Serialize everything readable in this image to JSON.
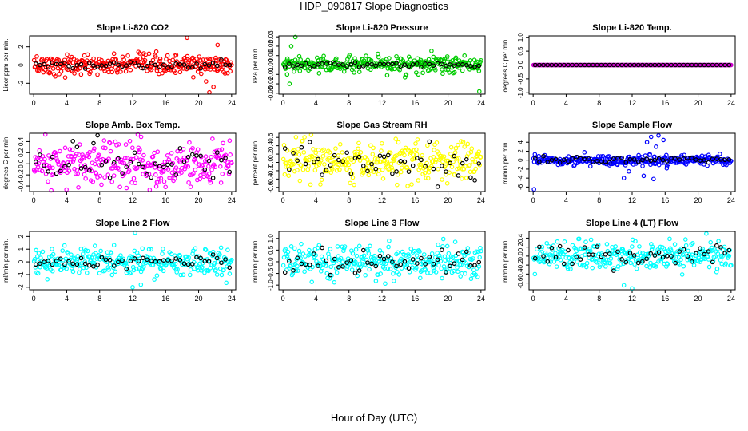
{
  "page": {
    "title": "HDP_090817  Slope Diagnostics",
    "xlabel": "Hour of Day (UTC)"
  },
  "colors": {
    "axis": "#000000",
    "overlay_points": "#000000"
  },
  "chart_data": [
    {
      "type": "scatter",
      "title": "Slope Li-820 CO2",
      "ylabel": "Licor ppm per min.",
      "color": "#ff0000",
      "xlim": [
        -0.5,
        24.5
      ],
      "xticks": [
        0,
        4,
        8,
        12,
        16,
        20,
        24
      ],
      "ylim": [
        -3.2,
        3.2
      ],
      "yticks": [
        -2,
        0,
        2
      ],
      "series_noise": {
        "sd": 0.55,
        "outliers": [
          [
            18.6,
            3.0
          ],
          [
            20.9,
            -1.8
          ],
          [
            21.3,
            -3.0
          ],
          [
            21.8,
            -2.4
          ],
          [
            22.3,
            2.2
          ]
        ]
      },
      "black_sd": 0.25
    },
    {
      "type": "scatter",
      "title": "Slope Li-820 Pressure",
      "ylabel": "kPa per min.",
      "color": "#00cc00",
      "xlim": [
        -0.5,
        24.5
      ],
      "xticks": [
        0,
        4,
        8,
        12,
        16,
        20,
        24
      ],
      "ylim": [
        -0.031,
        0.031
      ],
      "yticks": [
        -0.03,
        -0.02,
        -0.01,
        0.0,
        0.01,
        0.02,
        0.03
      ],
      "series_noise": {
        "sd": 0.004,
        "outliers": [
          [
            1.5,
            0.03
          ],
          [
            1.0,
            0.02
          ],
          [
            0.8,
            -0.02
          ],
          [
            16.4,
            -0.01
          ],
          [
            22.0,
            0.01
          ],
          [
            23.8,
            -0.028
          ],
          [
            0.5,
            -0.01
          ],
          [
            18.0,
            0.015
          ]
        ]
      },
      "black_sd": 0.0015
    },
    {
      "type": "scatter",
      "title": "Slope Li-820 Temp.",
      "ylabel": "degrees C per min.",
      "color": "#cc00cc",
      "xlim": [
        -0.5,
        24.5
      ],
      "xticks": [
        0,
        4,
        8,
        12,
        16,
        20,
        24
      ],
      "ylim": [
        -1.05,
        1.05
      ],
      "yticks": [
        -1.0,
        -0.5,
        0.0,
        0.5,
        1.0
      ],
      "series_noise": {
        "sd": 0.0,
        "outliers": []
      },
      "black_sd": 0.0
    },
    {
      "type": "scatter",
      "title": "Slope Amb. Box Temp.",
      "ylabel": "degrees C per min.",
      "color": "#ff00ff",
      "xlim": [
        -0.5,
        24.5
      ],
      "xticks": [
        0,
        4,
        8,
        12,
        16,
        20,
        24
      ],
      "ylim": [
        -0.5,
        0.55
      ],
      "yticks": [
        -0.4,
        -0.2,
        0.0,
        0.2,
        0.4
      ],
      "series_noise": {
        "sd": 0.2,
        "outliers": []
      },
      "black_sd": 0.18
    },
    {
      "type": "scatter",
      "title": "Slope Gas Stream RH",
      "ylabel": "percent per min.",
      "color": "#ffff00",
      "xlim": [
        -0.5,
        24.5
      ],
      "xticks": [
        0,
        4,
        8,
        12,
        16,
        20,
        24
      ],
      "ylim": [
        -0.7,
        0.7
      ],
      "yticks": [
        -0.6,
        -0.4,
        -0.2,
        0.0,
        0.2,
        0.4,
        0.6
      ],
      "series_noise": {
        "sd": 0.24,
        "outliers": []
      },
      "black_sd": 0.2
    },
    {
      "type": "scatter",
      "title": "Slope Sample Flow",
      "ylabel": "ml/min per min.",
      "color": "#0000ff",
      "xlim": [
        -0.5,
        24.5
      ],
      "xticks": [
        0,
        4,
        8,
        12,
        16,
        20,
        24
      ],
      "ylim": [
        -7.0,
        6.0
      ],
      "yticks": [
        -6,
        -4,
        -2,
        0,
        2,
        4
      ],
      "series_noise": {
        "sd": 0.6,
        "outliers": [
          [
            0.1,
            -6.5
          ],
          [
            11.0,
            -4.0
          ],
          [
            13.4,
            -3.5
          ],
          [
            13.8,
            4.0
          ],
          [
            14.3,
            5.2
          ],
          [
            14.9,
            3.0
          ],
          [
            15.2,
            5.5
          ],
          [
            15.8,
            4.5
          ],
          [
            11.6,
            -2.5
          ],
          [
            14.6,
            -4.2
          ],
          [
            16.2,
            -1.8
          ]
        ]
      },
      "black_sd": 0.35
    },
    {
      "type": "scatter",
      "title": "Slope Line 2 Flow",
      "ylabel": "ml/min per min.",
      "color": "#00ffff",
      "xlim": [
        -0.5,
        24.5
      ],
      "xticks": [
        0,
        4,
        8,
        12,
        16,
        20,
        24
      ],
      "ylim": [
        -2.2,
        2.4
      ],
      "yticks": [
        -2,
        -1,
        0,
        1,
        2
      ],
      "series_noise": {
        "sd": 0.55,
        "outliers": [
          [
            12.3,
            2.3
          ],
          [
            12.0,
            -2.0
          ],
          [
            13.0,
            -1.8
          ]
        ]
      },
      "black_sd": 0.25
    },
    {
      "type": "scatter",
      "title": "Slope Line 3 Flow",
      "ylabel": "ml/min per min.",
      "color": "#00ffff",
      "xlim": [
        -0.5,
        24.5
      ],
      "xticks": [
        0,
        4,
        8,
        12,
        16,
        20,
        24
      ],
      "ylim": [
        -1.2,
        1.3
      ],
      "yticks": [
        -1.0,
        -0.5,
        0.0,
        0.5,
        1.0
      ],
      "series_noise": {
        "sd": 0.35,
        "outliers": []
      },
      "black_sd": 0.28
    },
    {
      "type": "scatter",
      "title": "Slope Line 4 (LT) Flow",
      "ylabel": "ml/min per min.",
      "color": "#00ffff",
      "xlim": [
        -0.5,
        24.5
      ],
      "xticks": [
        0,
        4,
        8,
        12,
        16,
        20,
        24
      ],
      "ylim": [
        -0.75,
        0.55
      ],
      "yticks": [
        -0.6,
        -0.4,
        -0.2,
        0.0,
        0.2,
        0.4
      ],
      "series_noise": {
        "sd": 0.16,
        "outliers": [
          [
            12.0,
            -0.72
          ],
          [
            11.0,
            -0.65
          ],
          [
            21.0,
            0.5
          ]
        ]
      },
      "black_sd": 0.12
    }
  ]
}
